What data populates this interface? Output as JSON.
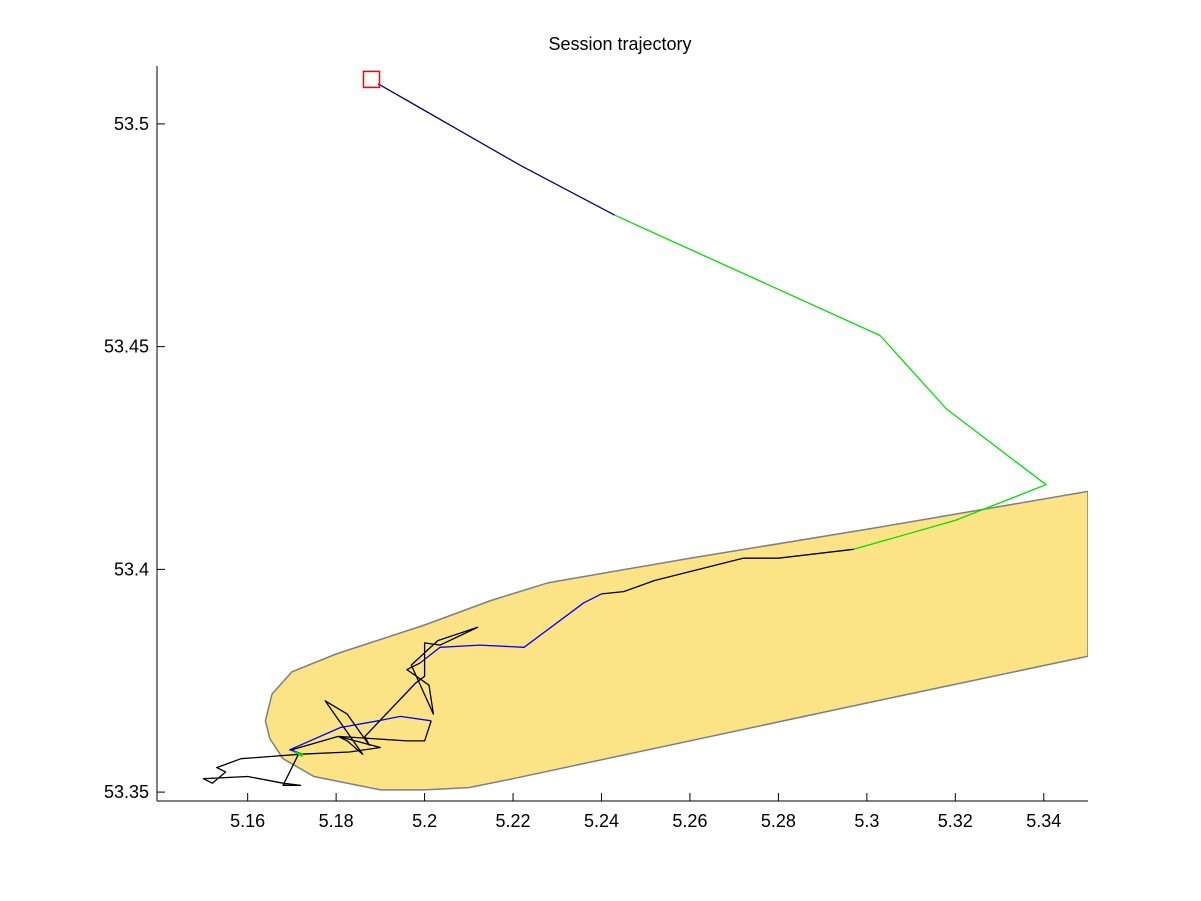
{
  "chart_data": {
    "type": "line",
    "title": "Session trajectory",
    "xlabel": "",
    "ylabel": "",
    "xlim": [
      5.1395,
      5.35
    ],
    "ylim": [
      53.348,
      53.513
    ],
    "x_ticks": [
      "5.16",
      "5.18",
      "5.2",
      "5.22",
      "5.24",
      "5.26",
      "5.28",
      "5.3",
      "5.32",
      "5.34"
    ],
    "x_tick_values": [
      5.16,
      5.18,
      5.2,
      5.22,
      5.24,
      5.26,
      5.28,
      5.3,
      5.32,
      5.34
    ],
    "y_ticks": [
      "53.35",
      "53.4",
      "53.45",
      "53.5"
    ],
    "y_tick_values": [
      53.35,
      53.4,
      53.45,
      53.5
    ],
    "grid": false,
    "region": {
      "fill": "#FCE386",
      "edge": "#7F7F7F",
      "points": [
        [
          5.17,
          53.377
        ],
        [
          5.18,
          53.381
        ],
        [
          5.2,
          53.3875
        ],
        [
          5.215,
          53.393
        ],
        [
          5.228,
          53.397
        ],
        [
          5.26,
          53.4025
        ],
        [
          5.3,
          53.409
        ],
        [
          5.35,
          53.4175
        ],
        [
          5.35,
          53.3805
        ],
        [
          5.3,
          53.37
        ],
        [
          5.22,
          53.353
        ],
        [
          5.21,
          53.351
        ],
        [
          5.2,
          53.3505
        ],
        [
          5.19,
          53.3505
        ],
        [
          5.175,
          53.3535
        ],
        [
          5.168,
          53.3575
        ],
        [
          5.165,
          53.362
        ],
        [
          5.164,
          53.366
        ],
        [
          5.1655,
          53.372
        ]
      ]
    },
    "start_marker": {
      "x": 5.188,
      "y": 53.51,
      "color": "#FF0000"
    },
    "series": [
      {
        "color": "#00008B",
        "points": [
          [
            5.1895,
            53.509
          ],
          [
            5.2,
            53.503
          ],
          [
            5.222,
            53.4905
          ],
          [
            5.243,
            53.4795
          ]
        ]
      },
      {
        "color": "#00E000",
        "points": [
          [
            5.243,
            53.4795
          ],
          [
            5.303,
            53.4525
          ],
          [
            5.318,
            53.436
          ],
          [
            5.3405,
            53.419
          ],
          [
            5.32,
            53.411
          ],
          [
            5.297,
            53.4045
          ]
        ]
      },
      {
        "color": "#000000",
        "points": [
          [
            5.297,
            53.4045
          ],
          [
            5.28,
            53.4025
          ],
          [
            5.272,
            53.4025
          ],
          [
            5.262,
            53.4
          ],
          [
            5.252,
            53.3975
          ],
          [
            5.245,
            53.395
          ],
          [
            5.24,
            53.3945
          ]
        ]
      },
      {
        "color": "#0000FF",
        "points": [
          [
            5.24,
            53.3945
          ],
          [
            5.236,
            53.3925
          ],
          [
            5.2225,
            53.3825
          ],
          [
            5.2125,
            53.383
          ],
          [
            5.2035,
            53.3825
          ],
          [
            5.199,
            53.379
          ]
        ]
      },
      {
        "color": "#000000",
        "points": [
          [
            5.199,
            53.379
          ],
          [
            5.196,
            53.3775
          ],
          [
            5.201,
            53.374
          ],
          [
            5.202,
            53.3675
          ],
          [
            5.197,
            53.3785
          ],
          [
            5.203,
            53.384
          ],
          [
            5.212,
            53.387
          ],
          [
            5.2035,
            53.383
          ],
          [
            5.2,
            53.3835
          ],
          [
            5.2,
            53.376
          ],
          [
            5.198,
            53.3745
          ],
          [
            5.1865,
            53.3625
          ],
          [
            5.1875,
            53.3605
          ],
          [
            5.1825,
            53.3675
          ],
          [
            5.1775,
            53.3705
          ],
          [
            5.186,
            53.3585
          ],
          [
            5.1825,
            53.3615
          ],
          [
            5.1805,
            53.3625
          ],
          [
            5.19,
            53.36
          ],
          [
            5.183,
            53.359
          ],
          [
            5.172,
            53.3585
          ],
          [
            5.1585,
            53.3575
          ],
          [
            5.153,
            53.3555
          ],
          [
            5.155,
            53.3545
          ],
          [
            5.152,
            53.352
          ],
          [
            5.15,
            53.353
          ],
          [
            5.16,
            53.3535
          ],
          [
            5.168,
            53.352
          ],
          [
            5.172,
            53.3515
          ],
          [
            5.168,
            53.3515
          ],
          [
            5.1715,
            53.3585
          ],
          [
            5.17,
            53.3595
          ],
          [
            5.1805,
            53.3625
          ],
          [
            5.196,
            53.3615
          ],
          [
            5.2,
            53.3615
          ],
          [
            5.2015,
            53.366
          ]
        ]
      },
      {
        "color": "#0000FF",
        "points": [
          [
            5.2015,
            53.366
          ],
          [
            5.1945,
            53.367
          ],
          [
            5.1895,
            53.366
          ],
          [
            5.181,
            53.3645
          ],
          [
            5.1695,
            53.3595
          ],
          [
            5.1725,
            53.3585
          ]
        ]
      },
      {
        "color": "#00E000",
        "points": [
          [
            5.1725,
            53.3585
          ],
          [
            5.1705,
            53.359
          ],
          [
            5.1725,
            53.358
          ]
        ]
      }
    ]
  }
}
